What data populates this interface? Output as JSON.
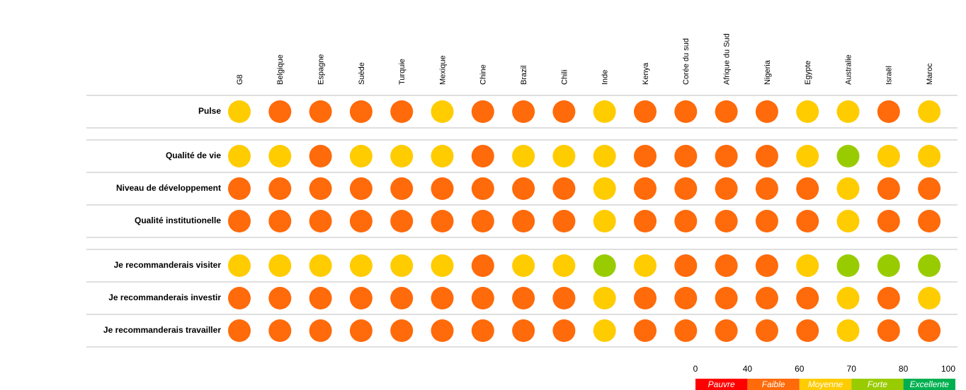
{
  "columns": [
    "G8",
    "Belgique",
    "Espagne",
    "Suède",
    "Turquie",
    "Mexique",
    "Chine",
    "Brazil",
    "Chili",
    "Inde",
    "Kenya",
    "Corée du sud",
    "Afrique du Sud",
    "Nigeria",
    "Egypte",
    "Australie",
    "Israël",
    "Maroc"
  ],
  "groups": [
    [
      {
        "label": "Pulse",
        "cells": [
          "Moyenne",
          "Faible",
          "Faible",
          "Faible",
          "Faible",
          "Moyenne",
          "Faible",
          "Faible",
          "Faible",
          "Moyenne",
          "Faible",
          "Faible",
          "Faible",
          "Faible",
          "Moyenne",
          "Moyenne",
          "Faible",
          "Moyenne"
        ]
      }
    ],
    [
      {
        "label": "Qualité de vie",
        "cells": [
          "Moyenne",
          "Moyenne",
          "Faible",
          "Moyenne",
          "Moyenne",
          "Moyenne",
          "Faible",
          "Moyenne",
          "Moyenne",
          "Moyenne",
          "Faible",
          "Faible",
          "Faible",
          "Faible",
          "Moyenne",
          "Forte",
          "Moyenne",
          "Moyenne"
        ]
      },
      {
        "label": "Niveau de développement",
        "cells": [
          "Faible",
          "Faible",
          "Faible",
          "Faible",
          "Faible",
          "Faible",
          "Faible",
          "Faible",
          "Faible",
          "Moyenne",
          "Faible",
          "Faible",
          "Faible",
          "Faible",
          "Faible",
          "Moyenne",
          "Faible",
          "Faible"
        ]
      },
      {
        "label": "Qualité institutionelle",
        "cells": [
          "Faible",
          "Faible",
          "Faible",
          "Faible",
          "Faible",
          "Faible",
          "Faible",
          "Faible",
          "Faible",
          "Moyenne",
          "Faible",
          "Faible",
          "Faible",
          "Faible",
          "Faible",
          "Moyenne",
          "Faible",
          "Faible"
        ]
      }
    ],
    [
      {
        "label": "Je recommanderais visiter",
        "cells": [
          "Moyenne",
          "Moyenne",
          "Moyenne",
          "Moyenne",
          "Moyenne",
          "Moyenne",
          "Faible",
          "Moyenne",
          "Moyenne",
          "Forte",
          "Moyenne",
          "Faible",
          "Faible",
          "Faible",
          "Moyenne",
          "Forte",
          "Forte",
          "Forte"
        ]
      },
      {
        "label": "Je recommanderais investir",
        "cells": [
          "Faible",
          "Faible",
          "Faible",
          "Faible",
          "Faible",
          "Faible",
          "Faible",
          "Faible",
          "Faible",
          "Moyenne",
          "Faible",
          "Faible",
          "Faible",
          "Faible",
          "Faible",
          "Moyenne",
          "Faible",
          "Moyenne"
        ]
      },
      {
        "label": "Je recommanderais travailler",
        "cells": [
          "Faible",
          "Faible",
          "Faible",
          "Faible",
          "Faible",
          "Faible",
          "Faible",
          "Faible",
          "Faible",
          "Moyenne",
          "Faible",
          "Faible",
          "Faible",
          "Faible",
          "Faible",
          "Moyenne",
          "Faible",
          "Faible"
        ]
      }
    ]
  ],
  "legend": {
    "ticks": [
      0,
      40,
      60,
      70,
      80,
      100
    ],
    "bands": [
      {
        "label": "Pauvre",
        "color": "#ff0000"
      },
      {
        "label": "Faible",
        "color": "#ff6a0a"
      },
      {
        "label": "Moyenne",
        "color": "#ffcc00"
      },
      {
        "label": "Forte",
        "color": "#99cc00"
      },
      {
        "label": "Excellente",
        "color": "#00b050"
      }
    ]
  }
}
